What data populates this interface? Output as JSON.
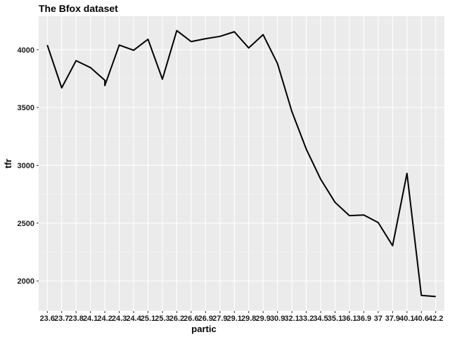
{
  "chart_data": {
    "type": "line",
    "title": "The Bfox dataset",
    "xlabel": "partic",
    "ylabel": "tfr",
    "x_tick_labels": [
      "23.6",
      "23.7",
      "23.8",
      "24.1",
      "24.2",
      "24.3",
      "24.4",
      "25.1",
      "25.3",
      "26.2",
      "26.6",
      "26.9",
      "27.9",
      "29.1",
      "29.8",
      "29.9",
      "30.9",
      "32.1",
      "33.2",
      "34.5",
      "35.1",
      "36.1",
      "36.9",
      "37",
      "37.9",
      "40.1",
      "40.6",
      "42.2"
    ],
    "x": [
      23.6,
      23.7,
      23.8,
      24.1,
      24.2,
      24.2,
      24.3,
      24.4,
      25.1,
      25.3,
      26.2,
      26.6,
      26.9,
      27.9,
      29.1,
      29.8,
      29.9,
      30.9,
      32.1,
      33.2,
      34.5,
      35.1,
      36.1,
      36.9,
      37,
      37.9,
      40.1,
      40.6,
      42.2
    ],
    "y": [
      4040,
      3670,
      3905,
      3845,
      3735,
      3690,
      4040,
      3995,
      4090,
      3745,
      4165,
      4070,
      4095,
      4115,
      4155,
      4015,
      4130,
      3880,
      3465,
      3140,
      2880,
      2680,
      2565,
      2570,
      2505,
      2305,
      2930,
      1875,
      1865
    ],
    "y_ticks": [
      2000,
      2500,
      3000,
      3500,
      4000
    ],
    "ylim": [
      1740,
      4290
    ],
    "grid": true,
    "legend": "none",
    "colors": {
      "panel": "#ebebeb",
      "grid_major": "#ffffff",
      "grid_minor": "#f5f5f5",
      "line": "#000000"
    }
  }
}
